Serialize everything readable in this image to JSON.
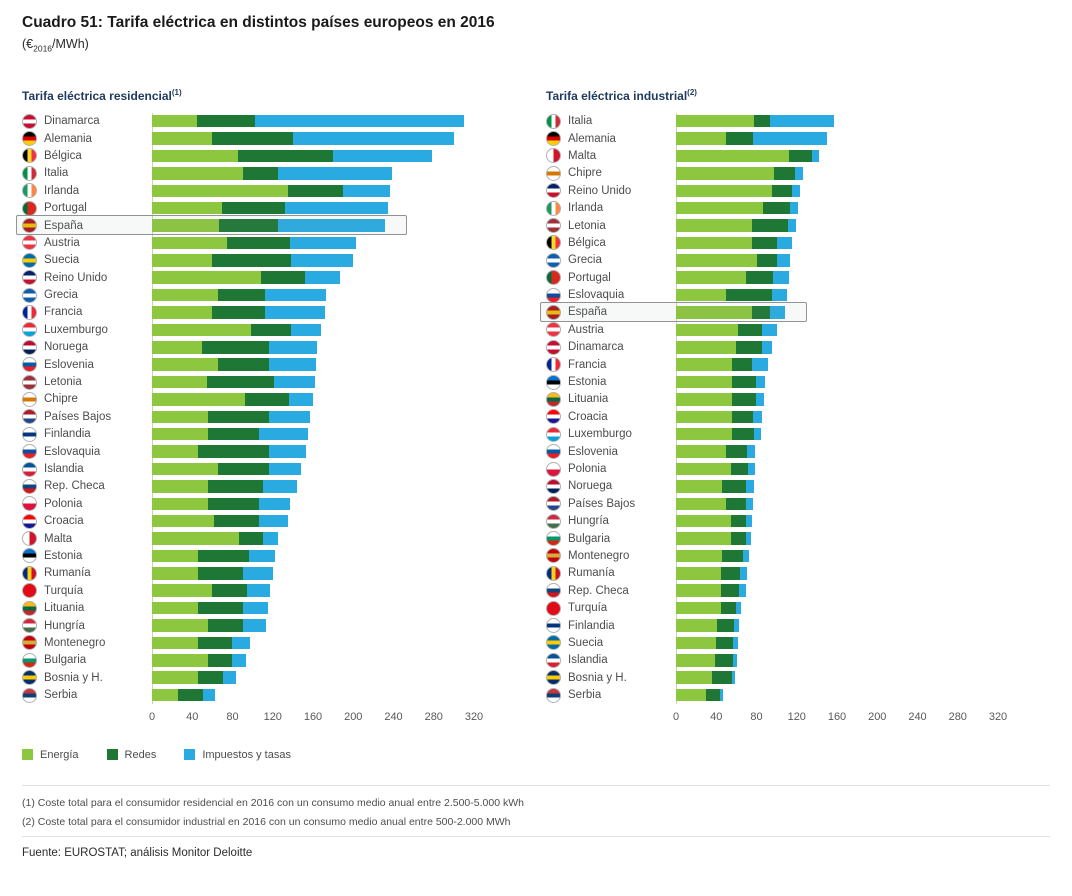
{
  "header": {
    "title": "Cuadro 51: Tarifa eléctrica en distintos países europeos en 2016",
    "subtitle_prefix": "(€",
    "subtitle_sub": "2016",
    "subtitle_suffix": "/MWh)"
  },
  "colors": {
    "energia": "#8dc63f",
    "redes": "#1e7735",
    "impuestos": "#29abe2",
    "highlight_border": "#919396",
    "axis_text": "#58595b",
    "label_text": "#4d4d4d",
    "chart_title": "#1f3a5f"
  },
  "legend": [
    {
      "label": "Energía",
      "color": "#8dc63f"
    },
    {
      "label": "Redes",
      "color": "#1e7735"
    },
    {
      "label": "Impuestos y tasas",
      "color": "#29abe2"
    }
  ],
  "footnotes": [
    "(1) Coste total para el consumidor residencial en 2016 con un consumo medio anual entre 2.500-5.000 kWh",
    "(2) Coste total para el consumidor industrial en 2016 con un consumo medio anual entre 500-2.000 MWh"
  ],
  "source": "Fuente: EUROSTAT; análisis Monitor Deloitte",
  "flags": {
    "Dinamarca": {
      "dir": "h",
      "colors": [
        "#c60c30",
        "#ffffff",
        "#c60c30"
      ]
    },
    "Alemania": {
      "dir": "h",
      "colors": [
        "#000000",
        "#dd0000",
        "#ffce00"
      ]
    },
    "Bélgica": {
      "dir": "v",
      "colors": [
        "#000000",
        "#fdda24",
        "#ef3340"
      ]
    },
    "Italia": {
      "dir": "v",
      "colors": [
        "#009246",
        "#ffffff",
        "#ce2b37"
      ]
    },
    "Irlanda": {
      "dir": "v",
      "colors": [
        "#169b62",
        "#ffffff",
        "#ff883e"
      ]
    },
    "Portugal": {
      "dir": "v",
      "colors": [
        "#046a38",
        "#da291c",
        "#da291c"
      ]
    },
    "España": {
      "dir": "h",
      "colors": [
        "#aa151b",
        "#f1bf00",
        "#aa151b"
      ]
    },
    "Austria": {
      "dir": "h",
      "colors": [
        "#ef3340",
        "#ffffff",
        "#ef3340"
      ]
    },
    "Suecia": {
      "dir": "h",
      "colors": [
        "#006aa7",
        "#fecc02",
        "#006aa7"
      ]
    },
    "Reino Unido": {
      "dir": "h",
      "colors": [
        "#012169",
        "#ffffff",
        "#c8102e"
      ]
    },
    "Grecia": {
      "dir": "h",
      "colors": [
        "#0d5eaf",
        "#ffffff",
        "#0d5eaf"
      ]
    },
    "Francia": {
      "dir": "v",
      "colors": [
        "#002395",
        "#ffffff",
        "#ed2939"
      ]
    },
    "Luxemburgo": {
      "dir": "h",
      "colors": [
        "#ed2939",
        "#ffffff",
        "#00a1de"
      ]
    },
    "Noruega": {
      "dir": "h",
      "colors": [
        "#ba0c2f",
        "#ffffff",
        "#00205b"
      ]
    },
    "Eslovenia": {
      "dir": "h",
      "colors": [
        "#ffffff",
        "#005da4",
        "#ed1c24"
      ]
    },
    "Letonia": {
      "dir": "h",
      "colors": [
        "#9e3039",
        "#ffffff",
        "#9e3039"
      ]
    },
    "Chipre": {
      "dir": "h",
      "colors": [
        "#ffffff",
        "#d57800",
        "#ffffff"
      ]
    },
    "Países Bajos": {
      "dir": "h",
      "colors": [
        "#ae1c28",
        "#ffffff",
        "#21468b"
      ]
    },
    "Finlandia": {
      "dir": "h",
      "colors": [
        "#ffffff",
        "#003580",
        "#ffffff"
      ]
    },
    "Eslovaquia": {
      "dir": "h",
      "colors": [
        "#ffffff",
        "#0b4ea2",
        "#ee1c25"
      ]
    },
    "Islandia": {
      "dir": "h",
      "colors": [
        "#02529c",
        "#ffffff",
        "#dc1e35"
      ]
    },
    "Rep. Checa": {
      "dir": "h",
      "colors": [
        "#ffffff",
        "#11457e",
        "#d7141a"
      ]
    },
    "Polonia": {
      "dir": "h",
      "colors": [
        "#ffffff",
        "#dc143c"
      ]
    },
    "Croacia": {
      "dir": "h",
      "colors": [
        "#ff0000",
        "#ffffff",
        "#171796"
      ]
    },
    "Malta": {
      "dir": "v",
      "colors": [
        "#ffffff",
        "#cf142b"
      ]
    },
    "Estonia": {
      "dir": "h",
      "colors": [
        "#0072ce",
        "#000000",
        "#ffffff"
      ]
    },
    "Rumanía": {
      "dir": "v",
      "colors": [
        "#002b7f",
        "#fcd116",
        "#ce1126"
      ]
    },
    "Turquía": {
      "dir": "h",
      "colors": [
        "#e30a17"
      ]
    },
    "Lituania": {
      "dir": "h",
      "colors": [
        "#fdb913",
        "#006a44",
        "#c1272d"
      ]
    },
    "Hungría": {
      "dir": "h",
      "colors": [
        "#cd2a3e",
        "#ffffff",
        "#436f4d"
      ]
    },
    "Montenegro": {
      "dir": "h",
      "colors": [
        "#c40308",
        "#d3ae3b",
        "#c40308"
      ]
    },
    "Bulgaria": {
      "dir": "h",
      "colors": [
        "#ffffff",
        "#00966e",
        "#d62612"
      ]
    },
    "Bosnia y H.": {
      "dir": "h",
      "colors": [
        "#002f6c",
        "#fecb00",
        "#002f6c"
      ]
    },
    "Serbia": {
      "dir": "h",
      "colors": [
        "#c6363c",
        "#0c4076",
        "#ffffff"
      ]
    }
  },
  "chart_data": [
    {
      "type": "bar",
      "orientation": "horizontal",
      "stacked": true,
      "title": "Tarifa eléctrica residencial",
      "title_sup": "(1)",
      "unit": "€2016/MWh",
      "xlim": [
        0,
        320
      ],
      "xticks": [
        0,
        40,
        80,
        120,
        160,
        200,
        240,
        280,
        320
      ],
      "series_names": [
        "Energía",
        "Redes",
        "Impuestos y tasas"
      ],
      "highlight_country": "España",
      "rows": [
        {
          "country": "Dinamarca",
          "values": [
            45,
            57,
            208
          ]
        },
        {
          "country": "Alemania",
          "values": [
            60,
            80,
            160
          ]
        },
        {
          "country": "Bélgica",
          "values": [
            85,
            95,
            98
          ]
        },
        {
          "country": "Italia",
          "values": [
            90,
            35,
            114
          ]
        },
        {
          "country": "Irlanda",
          "values": [
            135,
            55,
            47
          ]
        },
        {
          "country": "Portugal",
          "values": [
            70,
            62,
            103
          ]
        },
        {
          "country": "España",
          "values": [
            67,
            58,
            107
          ]
        },
        {
          "country": "Austria",
          "values": [
            75,
            62,
            66
          ]
        },
        {
          "country": "Suecia",
          "values": [
            60,
            78,
            62
          ]
        },
        {
          "country": "Reino Unido",
          "values": [
            108,
            44,
            35
          ]
        },
        {
          "country": "Grecia",
          "values": [
            66,
            46,
            61
          ]
        },
        {
          "country": "Francia",
          "values": [
            60,
            52,
            60
          ]
        },
        {
          "country": "Luxemburgo",
          "values": [
            98,
            40,
            30
          ]
        },
        {
          "country": "Noruega",
          "values": [
            50,
            66,
            48
          ]
        },
        {
          "country": "Eslovenia",
          "values": [
            66,
            50,
            47
          ]
        },
        {
          "country": "Letonia",
          "values": [
            55,
            66,
            41
          ]
        },
        {
          "country": "Chipre",
          "values": [
            92,
            44,
            24
          ]
        },
        {
          "country": "Países Bajos",
          "values": [
            56,
            60,
            41
          ]
        },
        {
          "country": "Finlandia",
          "values": [
            56,
            50,
            49
          ]
        },
        {
          "country": "Eslovaquia",
          "values": [
            46,
            70,
            37
          ]
        },
        {
          "country": "Islandia",
          "values": [
            66,
            50,
            32
          ]
        },
        {
          "country": "Rep. Checa",
          "values": [
            56,
            54,
            34
          ]
        },
        {
          "country": "Polonia",
          "values": [
            56,
            50,
            31
          ]
        },
        {
          "country": "Croacia",
          "values": [
            62,
            44,
            29
          ]
        },
        {
          "country": "Malta",
          "values": [
            86,
            24,
            15
          ]
        },
        {
          "country": "Estonia",
          "values": [
            46,
            50,
            26
          ]
        },
        {
          "country": "Rumanía",
          "values": [
            46,
            44,
            30
          ]
        },
        {
          "country": "Turquía",
          "values": [
            60,
            34,
            23
          ]
        },
        {
          "country": "Lituania",
          "values": [
            46,
            44,
            25
          ]
        },
        {
          "country": "Hungría",
          "values": [
            56,
            34,
            23
          ]
        },
        {
          "country": "Montenegro",
          "values": [
            46,
            34,
            17
          ]
        },
        {
          "country": "Bulgaria",
          "values": [
            56,
            24,
            13
          ]
        },
        {
          "country": "Bosnia y H.",
          "values": [
            46,
            25,
            12
          ]
        },
        {
          "country": "Serbia",
          "values": [
            26,
            25,
            12
          ]
        }
      ]
    },
    {
      "type": "bar",
      "orientation": "horizontal",
      "stacked": true,
      "title": "Tarifa eléctrica industrial",
      "title_sup": "(2)",
      "unit": "€2016/MWh",
      "xlim": [
        0,
        320
      ],
      "xticks": [
        0,
        40,
        80,
        120,
        160,
        200,
        240,
        280,
        320
      ],
      "series_names": [
        "Energía",
        "Redes",
        "Impuestos y tasas"
      ],
      "highlight_country": "España",
      "rows": [
        {
          "country": "Italia",
          "values": [
            78,
            15,
            64
          ]
        },
        {
          "country": "Alemania",
          "values": [
            50,
            27,
            73
          ]
        },
        {
          "country": "Malta",
          "values": [
            112,
            23,
            7
          ]
        },
        {
          "country": "Chipre",
          "values": [
            97,
            21,
            8
          ]
        },
        {
          "country": "Reino Unido",
          "values": [
            95,
            20,
            8
          ]
        },
        {
          "country": "Irlanda",
          "values": [
            86,
            27,
            8
          ]
        },
        {
          "country": "Letonia",
          "values": [
            76,
            35,
            8
          ]
        },
        {
          "country": "Bélgica",
          "values": [
            76,
            24,
            15
          ]
        },
        {
          "country": "Grecia",
          "values": [
            80,
            20,
            13
          ]
        },
        {
          "country": "Portugal",
          "values": [
            70,
            26,
            16
          ]
        },
        {
          "country": "Eslovaquia",
          "values": [
            50,
            45,
            15
          ]
        },
        {
          "country": "España",
          "values": [
            76,
            17,
            15
          ]
        },
        {
          "country": "Austria",
          "values": [
            62,
            23,
            15
          ]
        },
        {
          "country": "Dinamarca",
          "values": [
            60,
            25,
            10
          ]
        },
        {
          "country": "Francia",
          "values": [
            56,
            20,
            15
          ]
        },
        {
          "country": "Estonia",
          "values": [
            56,
            24,
            8
          ]
        },
        {
          "country": "Lituania",
          "values": [
            56,
            24,
            7
          ]
        },
        {
          "country": "Croacia",
          "values": [
            56,
            21,
            8
          ]
        },
        {
          "country": "Luxemburgo",
          "values": [
            56,
            22,
            6
          ]
        },
        {
          "country": "Eslovenia",
          "values": [
            50,
            21,
            8
          ]
        },
        {
          "country": "Polonia",
          "values": [
            55,
            17,
            7
          ]
        },
        {
          "country": "Noruega",
          "values": [
            46,
            24,
            8
          ]
        },
        {
          "country": "Países Bajos",
          "values": [
            50,
            20,
            7
          ]
        },
        {
          "country": "Hungría",
          "values": [
            55,
            15,
            6
          ]
        },
        {
          "country": "Bulgaria",
          "values": [
            55,
            15,
            5
          ]
        },
        {
          "country": "Montenegro",
          "values": [
            46,
            21,
            6
          ]
        },
        {
          "country": "Rumanía",
          "values": [
            45,
            19,
            7
          ]
        },
        {
          "country": "Rep. Checa",
          "values": [
            45,
            18,
            7
          ]
        },
        {
          "country": "Turquía",
          "values": [
            45,
            15,
            5
          ]
        },
        {
          "country": "Finlandia",
          "values": [
            41,
            17,
            5
          ]
        },
        {
          "country": "Suecia",
          "values": [
            40,
            17,
            5
          ]
        },
        {
          "country": "Islandia",
          "values": [
            39,
            18,
            4
          ]
        },
        {
          "country": "Bosnia y H.",
          "values": [
            36,
            20,
            3
          ]
        },
        {
          "country": "Serbia",
          "values": [
            30,
            14,
            3
          ]
        }
      ]
    }
  ]
}
